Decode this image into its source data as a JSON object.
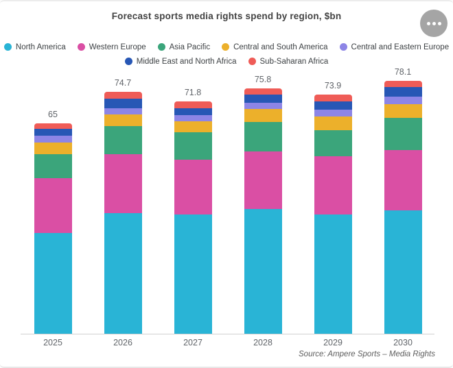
{
  "header": {
    "menu_icon": "ellipsis-icon"
  },
  "chart_data": {
    "type": "bar",
    "stacked": true,
    "title": "Forecast sports media rights spend by region, $bn",
    "xlabel": "",
    "ylabel": "",
    "grid": false,
    "legend_position": "top",
    "categories": [
      "2025",
      "2026",
      "2027",
      "2028",
      "2029",
      "2030"
    ],
    "series": [
      {
        "name": "North America",
        "color": "#29b4d6",
        "values": [
          31.2,
          37.3,
          36.9,
          38.6,
          36.8,
          38.1
        ]
      },
      {
        "name": "Western Europe",
        "color": "#da4fa4",
        "values": [
          16.8,
          18.3,
          16.9,
          17.7,
          18.0,
          18.7
        ]
      },
      {
        "name": "Asia Pacific",
        "color": "#3ba57b",
        "values": [
          7.4,
          8.5,
          8.4,
          9.2,
          8.1,
          9.9
        ]
      },
      {
        "name": "Central and South America",
        "color": "#ecb02b",
        "values": [
          3.8,
          3.6,
          3.5,
          3.9,
          4.2,
          4.2
        ]
      },
      {
        "name": "Central and Eastern Europe",
        "color": "#8d85e6",
        "values": [
          2.0,
          2.1,
          1.8,
          2.1,
          2.1,
          2.5
        ]
      },
      {
        "name": "Middle East and North Africa",
        "color": "#2757b5",
        "values": [
          2.2,
          2.8,
          2.2,
          2.5,
          2.6,
          2.8
        ]
      },
      {
        "name": "Sub-Saharan Africa",
        "color": "#ef5c57",
        "values": [
          1.6,
          2.1,
          2.1,
          1.8,
          2.1,
          1.9
        ]
      }
    ],
    "totals": [
      "65",
      "74.7",
      "71.8",
      "75.8",
      "73.9",
      "78.1"
    ],
    "source": "Source:  Ampere Sports – Media Rights"
  }
}
